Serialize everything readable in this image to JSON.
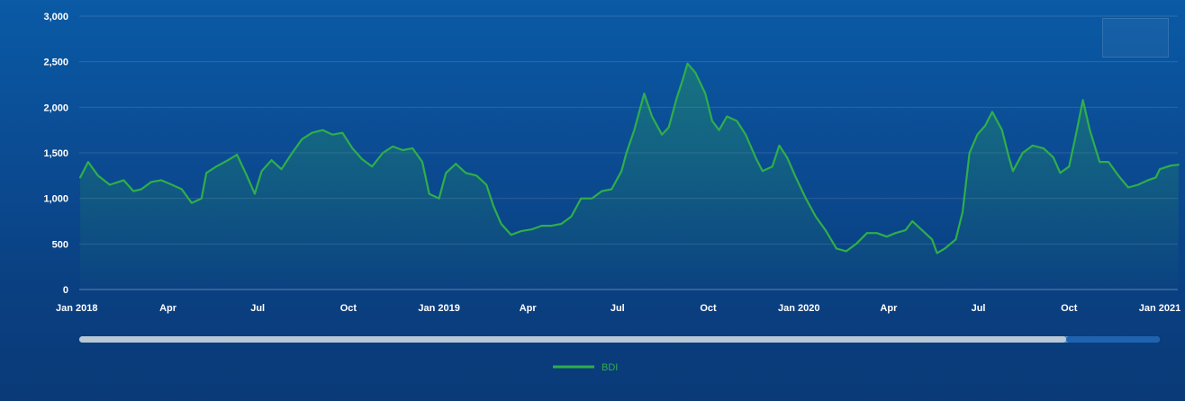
{
  "chart_data": {
    "type": "area",
    "title": "",
    "xlabel": "",
    "ylabel": "",
    "ylim": [
      0,
      3000
    ],
    "yticks": [
      0,
      500,
      1000,
      1500,
      2000,
      2500,
      3000
    ],
    "ytick_labels": [
      "0",
      "500",
      "1,000",
      "1,500",
      "2,000",
      "2,500",
      "3,000"
    ],
    "xtick_labels": [
      "Jan 2018",
      "Apr",
      "Jul",
      "Oct",
      "Jan 2019",
      "Apr",
      "Jul",
      "Oct",
      "Jan 2020",
      "Apr",
      "Jul",
      "Oct",
      "Jan 2021"
    ],
    "xtick_dates": [
      "2018-01",
      "2018-04",
      "2018-07",
      "2018-10",
      "2019-01",
      "2019-04",
      "2019-07",
      "2019-10",
      "2020-01",
      "2020-04",
      "2020-07",
      "2020-10",
      "2021-01"
    ],
    "grid": true,
    "legend_position": "bottom-center",
    "series": [
      {
        "name": "BDI",
        "color": "#2fae4a",
        "points": [
          [
            "2018-01-02",
            1230
          ],
          [
            "2018-01-10",
            1400
          ],
          [
            "2018-01-20",
            1250
          ],
          [
            "2018-02-01",
            1150
          ],
          [
            "2018-02-15",
            1200
          ],
          [
            "2018-02-25",
            1080
          ],
          [
            "2018-03-05",
            1100
          ],
          [
            "2018-03-15",
            1180
          ],
          [
            "2018-03-25",
            1200
          ],
          [
            "2018-04-05",
            1150
          ],
          [
            "2018-04-15",
            1100
          ],
          [
            "2018-04-25",
            950
          ],
          [
            "2018-05-05",
            1000
          ],
          [
            "2018-05-10",
            1280
          ],
          [
            "2018-05-20",
            1350
          ],
          [
            "2018-06-01",
            1420
          ],
          [
            "2018-06-10",
            1480
          ],
          [
            "2018-06-20",
            1250
          ],
          [
            "2018-06-28",
            1050
          ],
          [
            "2018-07-05",
            1300
          ],
          [
            "2018-07-15",
            1420
          ],
          [
            "2018-07-25",
            1320
          ],
          [
            "2018-08-05",
            1500
          ],
          [
            "2018-08-15",
            1650
          ],
          [
            "2018-08-25",
            1720
          ],
          [
            "2018-09-05",
            1750
          ],
          [
            "2018-09-15",
            1700
          ],
          [
            "2018-09-25",
            1720
          ],
          [
            "2018-10-05",
            1550
          ],
          [
            "2018-10-15",
            1430
          ],
          [
            "2018-10-25",
            1350
          ],
          [
            "2018-11-05",
            1500
          ],
          [
            "2018-11-15",
            1570
          ],
          [
            "2018-11-25",
            1530
          ],
          [
            "2018-12-05",
            1550
          ],
          [
            "2018-12-15",
            1400
          ],
          [
            "2018-12-22",
            1050
          ],
          [
            "2019-01-01",
            1000
          ],
          [
            "2019-01-08",
            1280
          ],
          [
            "2019-01-18",
            1380
          ],
          [
            "2019-01-28",
            1280
          ],
          [
            "2019-02-08",
            1250
          ],
          [
            "2019-02-18",
            1150
          ],
          [
            "2019-02-25",
            920
          ],
          [
            "2019-03-05",
            720
          ],
          [
            "2019-03-15",
            600
          ],
          [
            "2019-03-25",
            640
          ],
          [
            "2019-04-05",
            660
          ],
          [
            "2019-04-15",
            700
          ],
          [
            "2019-04-25",
            700
          ],
          [
            "2019-05-05",
            720
          ],
          [
            "2019-05-15",
            800
          ],
          [
            "2019-05-25",
            1000
          ],
          [
            "2019-06-05",
            1000
          ],
          [
            "2019-06-15",
            1080
          ],
          [
            "2019-06-25",
            1100
          ],
          [
            "2019-07-05",
            1300
          ],
          [
            "2019-07-10",
            1500
          ],
          [
            "2019-07-18",
            1750
          ],
          [
            "2019-07-28",
            2150
          ],
          [
            "2019-08-05",
            1900
          ],
          [
            "2019-08-15",
            1700
          ],
          [
            "2019-08-22",
            1780
          ],
          [
            "2019-08-30",
            2100
          ],
          [
            "2019-09-05",
            2300
          ],
          [
            "2019-09-10",
            2480
          ],
          [
            "2019-09-18",
            2380
          ],
          [
            "2019-09-28",
            2150
          ],
          [
            "2019-10-05",
            1850
          ],
          [
            "2019-10-12",
            1750
          ],
          [
            "2019-10-20",
            1900
          ],
          [
            "2019-10-30",
            1850
          ],
          [
            "2019-11-08",
            1700
          ],
          [
            "2019-11-18",
            1450
          ],
          [
            "2019-11-25",
            1300
          ],
          [
            "2019-12-05",
            1350
          ],
          [
            "2019-12-12",
            1580
          ],
          [
            "2019-12-20",
            1450
          ],
          [
            "2019-12-28",
            1250
          ],
          [
            "2020-01-08",
            1000
          ],
          [
            "2020-01-18",
            800
          ],
          [
            "2020-01-28",
            650
          ],
          [
            "2020-02-08",
            450
          ],
          [
            "2020-02-18",
            420
          ],
          [
            "2020-02-28",
            500
          ],
          [
            "2020-03-10",
            620
          ],
          [
            "2020-03-20",
            620
          ],
          [
            "2020-03-30",
            580
          ],
          [
            "2020-04-08",
            620
          ],
          [
            "2020-04-18",
            650
          ],
          [
            "2020-04-25",
            750
          ],
          [
            "2020-05-05",
            650
          ],
          [
            "2020-05-15",
            550
          ],
          [
            "2020-05-20",
            400
          ],
          [
            "2020-05-28",
            450
          ],
          [
            "2020-06-08",
            550
          ],
          [
            "2020-06-15",
            850
          ],
          [
            "2020-06-22",
            1500
          ],
          [
            "2020-06-30",
            1700
          ],
          [
            "2020-07-08",
            1800
          ],
          [
            "2020-07-15",
            1950
          ],
          [
            "2020-07-25",
            1750
          ],
          [
            "2020-08-01",
            1450
          ],
          [
            "2020-08-05",
            1300
          ],
          [
            "2020-08-15",
            1500
          ],
          [
            "2020-08-25",
            1580
          ],
          [
            "2020-09-05",
            1550
          ],
          [
            "2020-09-15",
            1450
          ],
          [
            "2020-09-22",
            1280
          ],
          [
            "2020-10-01",
            1350
          ],
          [
            "2020-10-08",
            1700
          ],
          [
            "2020-10-15",
            2080
          ],
          [
            "2020-10-22",
            1750
          ],
          [
            "2020-11-01",
            1400
          ],
          [
            "2020-11-10",
            1400
          ],
          [
            "2020-11-20",
            1250
          ],
          [
            "2020-11-30",
            1120
          ],
          [
            "2020-12-10",
            1150
          ],
          [
            "2020-12-20",
            1200
          ],
          [
            "2020-12-28",
            1230
          ],
          [
            "2021-01-01",
            1320
          ],
          [
            "2021-01-12",
            1360
          ],
          [
            "2021-01-20",
            1370
          ]
        ]
      }
    ]
  }
}
